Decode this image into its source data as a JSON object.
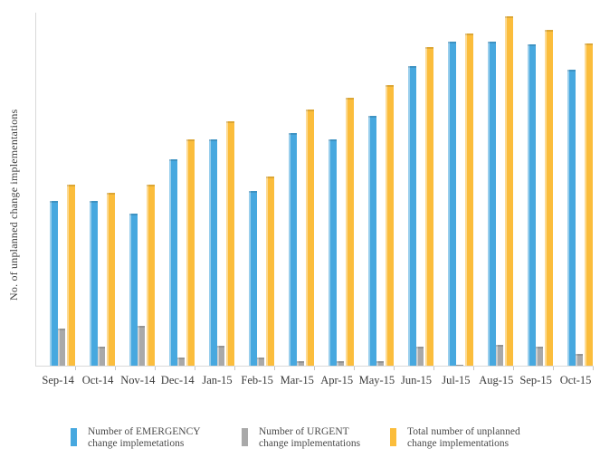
{
  "chart_data": {
    "type": "bar",
    "title": "",
    "xlabel": "",
    "ylabel": "No. of unplanned change implementations",
    "ylim": [
      0,
      390
    ],
    "y_axis_unlabeled": true,
    "grid": false,
    "legend_position": "bottom",
    "categories": [
      "Sep-14",
      "Oct-14",
      "Nov-14",
      "Dec-14",
      "Jan-15",
      "Feb-15",
      "Mar-15",
      "Apr-15",
      "May-15",
      "Jun-15",
      "Jul-15",
      "Aug-15",
      "Sep-15",
      "Oct-15"
    ],
    "series": [
      {
        "name": "Number of EMERGENCY change implemetations",
        "legend_label": "Number of EMERGENCY\nchange implemetations",
        "color": "#47A8DF",
        "values": [
          182,
          182,
          168,
          228,
          250,
          193,
          257,
          250,
          276,
          331,
          358,
          358,
          355,
          327
        ]
      },
      {
        "name": "Number of URGENT change implementations",
        "legend_label": "Number of URGENT\nchange implementations",
        "color": "#A9A9A9",
        "values": [
          41,
          21,
          44,
          9,
          22,
          9,
          5,
          5,
          5,
          21,
          1,
          23,
          21,
          13
        ]
      },
      {
        "name": "Total number of unplanned change implementations",
        "legend_label": "Total number of unplanned\nchange implementations",
        "color": "#FBBD3C",
        "values": [
          200,
          191,
          200,
          250,
          270,
          209,
          283,
          296,
          310,
          352,
          367,
          386,
          371,
          356
        ]
      }
    ]
  },
  "colors": {
    "axis_line": "#D9D9D9",
    "tick": "#C6C6C6",
    "axis_text": "#3B3B3B",
    "legend_text": "#4A4A4A",
    "background": "#FFFFFF"
  }
}
